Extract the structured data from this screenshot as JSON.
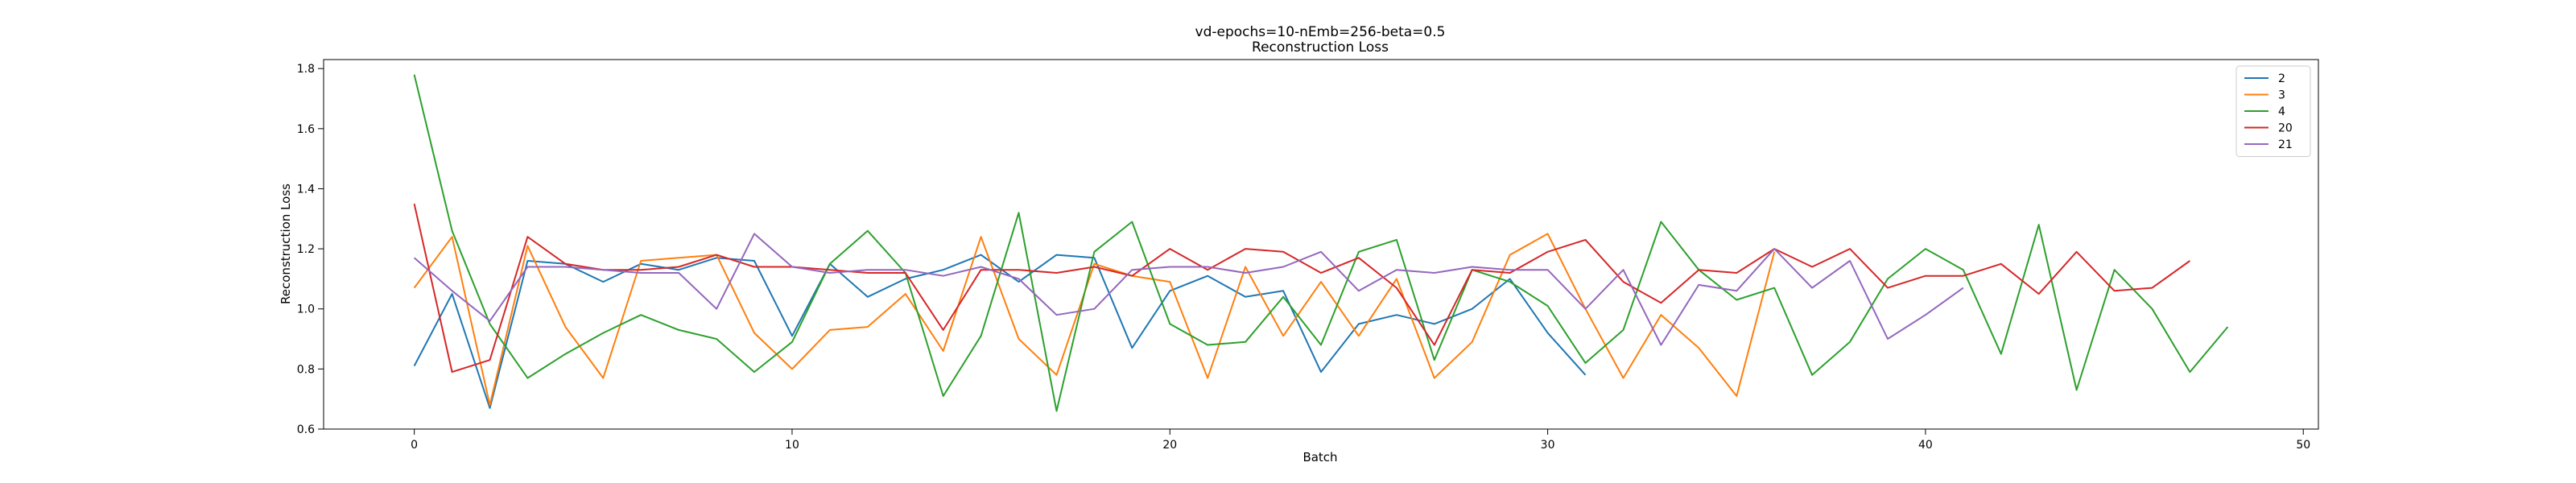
{
  "chart_data": {
    "type": "line",
    "title": "vd-epochs=10-nEmb=256-beta=0.5",
    "subtitle": "Reconstruction Loss",
    "xlabel": "Batch",
    "ylabel": "Reconstruction Loss",
    "xlim": [
      -2.4,
      50.4
    ],
    "ylim": [
      0.6,
      1.83
    ],
    "xticks": [
      0,
      10,
      20,
      30,
      40,
      50
    ],
    "yticks": [
      0.6,
      0.8,
      1.0,
      1.2,
      1.4,
      1.6,
      1.8
    ],
    "grid": false,
    "legend_position": "top-right",
    "series": [
      {
        "name": "2",
        "color": "#1f77b4",
        "values": [
          0.81,
          1.05,
          0.67,
          1.16,
          1.15,
          1.09,
          1.15,
          1.13,
          1.17,
          1.16,
          0.91,
          1.15,
          1.04,
          1.1,
          1.13,
          1.18,
          1.09,
          1.18,
          1.17,
          0.87,
          1.06,
          1.11,
          1.04,
          1.06,
          0.79,
          0.95,
          0.98,
          0.95,
          1.0,
          1.1,
          0.92,
          0.78
        ]
      },
      {
        "name": "3",
        "color": "#ff7f0e",
        "values": [
          1.07,
          1.24,
          0.68,
          1.21,
          0.94,
          0.77,
          1.16,
          1.17,
          1.18,
          0.92,
          0.8,
          0.93,
          0.94,
          1.05,
          0.86,
          1.24,
          0.9,
          0.78,
          1.15,
          1.11,
          1.09,
          0.77,
          1.14,
          0.91,
          1.09,
          0.91,
          1.1,
          0.77,
          0.89,
          1.18,
          1.25,
          1.0,
          0.77,
          0.98,
          0.87,
          0.71,
          1.19
        ]
      },
      {
        "name": "4",
        "color": "#2ca02c",
        "values": [
          1.78,
          1.26,
          0.95,
          0.77,
          0.85,
          0.92,
          0.98,
          0.93,
          0.9,
          0.79,
          0.89,
          1.15,
          1.26,
          1.12,
          0.71,
          0.91,
          1.32,
          0.66,
          1.19,
          1.29,
          0.95,
          0.88,
          0.89,
          1.04,
          0.88,
          1.19,
          1.23,
          0.83,
          1.13,
          1.09,
          1.01,
          0.82,
          0.93,
          1.29,
          1.13,
          1.03,
          1.07,
          0.78,
          0.89,
          1.1,
          1.2,
          1.13,
          0.85,
          1.28,
          0.73,
          1.13,
          1.0,
          0.79,
          0.94
        ]
      },
      {
        "name": "20",
        "color": "#d62728",
        "values": [
          1.35,
          0.79,
          0.83,
          1.24,
          1.15,
          1.13,
          1.13,
          1.14,
          1.18,
          1.14,
          1.14,
          1.13,
          1.12,
          1.12,
          0.93,
          1.13,
          1.13,
          1.12,
          1.14,
          1.11,
          1.2,
          1.13,
          1.2,
          1.19,
          1.12,
          1.17,
          1.07,
          0.88,
          1.13,
          1.12,
          1.19,
          1.23,
          1.09,
          1.02,
          1.13,
          1.12,
          1.2,
          1.14,
          1.2,
          1.07,
          1.11,
          1.11,
          1.15,
          1.05,
          1.19,
          1.06,
          1.07,
          1.16
        ]
      },
      {
        "name": "21",
        "color": "#9467bd",
        "values": [
          1.17,
          1.06,
          0.96,
          1.14,
          1.14,
          1.13,
          1.12,
          1.12,
          1.0,
          1.25,
          1.14,
          1.12,
          1.13,
          1.13,
          1.11,
          1.14,
          1.1,
          0.98,
          1.0,
          1.13,
          1.14,
          1.14,
          1.12,
          1.14,
          1.19,
          1.06,
          1.13,
          1.12,
          1.14,
          1.13,
          1.13,
          1.0,
          1.13,
          0.88,
          1.08,
          1.06,
          1.2,
          1.07,
          1.16,
          0.9,
          0.98,
          1.07
        ]
      }
    ]
  }
}
